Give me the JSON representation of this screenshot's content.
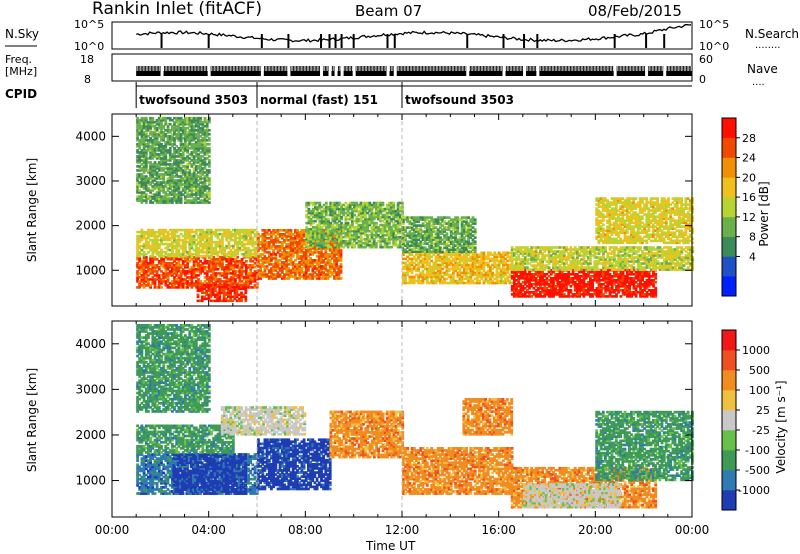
{
  "header": {
    "title": "Rankin Inlet (fitACF)",
    "beam": "Beam 07",
    "date": "08/Feb/2015"
  },
  "nsky_panel": {
    "left_label": "N.Sky",
    "left_ticks": [
      "10^5",
      "10^0"
    ],
    "right_label": "N.Search",
    "right_ticks": [
      "10^5",
      "10^0"
    ],
    "legend_dots": "........"
  },
  "freq_panel": {
    "left_label_1": "Freq.",
    "left_label_2": "[MHz]",
    "left_ticks": [
      "18",
      "8"
    ],
    "right_label": "Nave",
    "right_ticks": [
      "60",
      "0"
    ],
    "legend_dots": "....",
    "dips": [
      2.05,
      4.0,
      6.2,
      7.3,
      8.65,
      9.0,
      9.25,
      9.5,
      10.0,
      11.4,
      11.7,
      14.7,
      16.2,
      17.05,
      17.6,
      20.8,
      22.1,
      22.85
    ]
  },
  "cpid": {
    "label": "CPID",
    "segments": [
      {
        "name": "twofsound 3503",
        "start": 1.0,
        "end": 6.0
      },
      {
        "name": "normal (fast) 151",
        "start": 6.0,
        "end": 12.0
      },
      {
        "name": "twofsound 3503",
        "start": 12.0,
        "end": 24.0
      }
    ]
  },
  "x_axis": {
    "ticks": [
      "00:00",
      "04:00",
      "08:00",
      "12:00",
      "16:00",
      "20:00",
      "00:00"
    ],
    "label": "Time UT"
  },
  "chart_data": [
    {
      "type": "heatmap",
      "quantity": "Power",
      "ylabel": "Slant Range [km]",
      "ylim": [
        200,
        4500
      ],
      "yticks": [
        "1000",
        "2000",
        "3000",
        "4000"
      ],
      "xlim": [
        0,
        24
      ],
      "colorbar": {
        "label": "Power [dB]",
        "ticks": [
          "28",
          "24",
          "20",
          "16",
          "12",
          "8",
          "4"
        ],
        "colors": [
          "#0020ff",
          "#2050c8",
          "#3b8a5a",
          "#6ab04c",
          "#b8d432",
          "#f0c020",
          "#f09000",
          "#f04a00",
          "#ff1000"
        ]
      },
      "regions": [
        {
          "t0": 1.0,
          "t1": 6.0,
          "r0": 600,
          "r1": 1300,
          "level": 26
        },
        {
          "t0": 1.0,
          "t1": 6.0,
          "r0": 1300,
          "r1": 1900,
          "level": 15
        },
        {
          "t0": 3.5,
          "t1": 5.5,
          "r0": 300,
          "r1": 700,
          "level": 28
        },
        {
          "t0": 6.0,
          "t1": 9.5,
          "r0": 800,
          "r1": 1900,
          "level": 24
        },
        {
          "t0": 8.0,
          "t1": 12.0,
          "r0": 1500,
          "r1": 2500,
          "level": 10
        },
        {
          "t0": 12.0,
          "t1": 16.5,
          "r0": 700,
          "r1": 1400,
          "level": 18
        },
        {
          "t0": 12.0,
          "t1": 15.0,
          "r0": 1400,
          "r1": 2200,
          "level": 9
        },
        {
          "t0": 16.5,
          "t1": 22.5,
          "r0": 400,
          "r1": 1000,
          "level": 30
        },
        {
          "t0": 16.5,
          "t1": 24.0,
          "r0": 1000,
          "r1": 1500,
          "level": 14
        },
        {
          "t0": 20.0,
          "t1": 24.0,
          "r0": 1600,
          "r1": 2600,
          "level": 16
        },
        {
          "t0": 1.0,
          "t1": 4.0,
          "r0": 2500,
          "r1": 4400,
          "level": 8
        }
      ]
    },
    {
      "type": "heatmap",
      "quantity": "Velocity",
      "ylabel": "Slant Range [km]",
      "ylim": [
        200,
        4500
      ],
      "yticks": [
        "1000",
        "2000",
        "3000",
        "4000"
      ],
      "xlim": [
        0,
        24
      ],
      "colorbar": {
        "label": "Velocity [m s⁻¹]",
        "ticks": [
          "1000",
          "500",
          "100",
          "25",
          "-25",
          "-100",
          "-500",
          "-1000"
        ],
        "colors": [
          "#1e3cb4",
          "#2f7ab0",
          "#3f9a58",
          "#66c04a",
          "#c8c8c8",
          "#f0c040",
          "#f08c20",
          "#f05020",
          "#f01818"
        ]
      },
      "regions": [
        {
          "t0": 1.0,
          "t1": 6.0,
          "r0": 700,
          "r1": 1600,
          "level": 1
        },
        {
          "t0": 2.5,
          "t1": 5.5,
          "r0": 700,
          "r1": 1600,
          "level": 0
        },
        {
          "t0": 1.0,
          "t1": 5.0,
          "r0": 1600,
          "r1": 2200,
          "level": 2
        },
        {
          "t0": 4.5,
          "t1": 8.0,
          "r0": 2000,
          "r1": 2600,
          "level": 4
        },
        {
          "t0": 6.0,
          "t1": 9.0,
          "r0": 800,
          "r1": 1900,
          "level": 0
        },
        {
          "t0": 9.0,
          "t1": 12.0,
          "r0": 1500,
          "r1": 2500,
          "level": 6
        },
        {
          "t0": 12.0,
          "t1": 16.5,
          "r0": 700,
          "r1": 1700,
          "level": 6
        },
        {
          "t0": 14.5,
          "t1": 16.5,
          "r0": 2000,
          "r1": 2800,
          "level": 6
        },
        {
          "t0": 16.5,
          "t1": 22.5,
          "r0": 400,
          "r1": 1300,
          "level": 6
        },
        {
          "t0": 17.0,
          "t1": 21.0,
          "r0": 400,
          "r1": 900,
          "level": 4
        },
        {
          "t0": 20.0,
          "t1": 24.0,
          "r0": 1000,
          "r1": 2500,
          "level": 2
        },
        {
          "t0": 1.0,
          "t1": 4.0,
          "r0": 2500,
          "r1": 4400,
          "level": 2
        }
      ]
    }
  ]
}
